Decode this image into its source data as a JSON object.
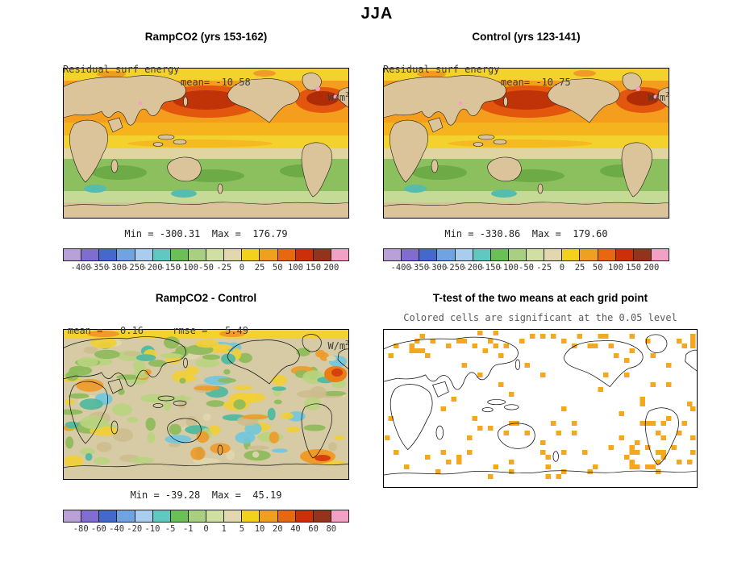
{
  "page_title": "JJA",
  "colorbar_colors": [
    "#b9a0d8",
    "#7f6ed0",
    "#4468cc",
    "#6fa3e2",
    "#a9cdee",
    "#5fc8c0",
    "#6abf57",
    "#a8d080",
    "#d0dfa2",
    "#e2d7ae",
    "#f3d21e",
    "#f0a020",
    "#e86810",
    "#cc3008",
    "#93331c",
    "#f2a0c4"
  ],
  "map_palettes": {
    "diff_blobs": [
      "#8cba5a",
      "#b8d47e",
      "#4cb8a0",
      "#6fc6de",
      "#f2cf35",
      "#f09a28",
      "#cdbd8e",
      "#e0d7ae",
      "#8cba5a",
      "#f2cf35",
      "#cdbd8e",
      "#b8d47e"
    ],
    "ttest_cell": "#f5a71d"
  },
  "panels": {
    "ramp": {
      "title": "RampCO2 (yrs 153-162)",
      "var_label": "Residual surf energy",
      "mean_label": "mean= -10.58",
      "units": "W/m",
      "units_exp": "2",
      "minmax": "Min = -300.31  Max =  176.79",
      "colorbar_labels": [
        "-400",
        "-350",
        "-300",
        "-250",
        "-200",
        "-150",
        "-100",
        "-50",
        "-25",
        "0",
        "25",
        "50",
        "100",
        "150",
        "200"
      ]
    },
    "control": {
      "title": "Control (yrs 123-141)",
      "var_label": "Residual surf energy",
      "mean_label": "mean= -10.75",
      "units": "W/m",
      "units_exp": "2",
      "minmax": "Min = -330.86  Max =  179.60",
      "colorbar_labels": [
        "-400",
        "-350",
        "-300",
        "-250",
        "-200",
        "-150",
        "-100",
        "-50",
        "-25",
        "0",
        "25",
        "50",
        "100",
        "150",
        "200"
      ]
    },
    "diff": {
      "title": "RampCO2 - Control",
      "stats_label": "mean =   0.16     rmse =   5.49",
      "units": "W/m",
      "units_exp": "2",
      "minmax": "Min = -39.28  Max =  45.19",
      "colorbar_labels": [
        "-80",
        "-60",
        "-40",
        "-20",
        "-10",
        "-5",
        "-1",
        "0",
        "1",
        "5",
        "10",
        "20",
        "40",
        "60",
        "80"
      ]
    },
    "ttest": {
      "title": "T-test of the two means at each grid point",
      "subtitle": "Colored cells are significant at the 0.05 level"
    }
  },
  "chart_data": [
    {
      "type": "heatmap",
      "title": "RampCO2 (yrs 153-162)",
      "season": "JJA",
      "variable": "Residual surf energy",
      "units": "W/m2",
      "mean": -10.58,
      "min": -300.31,
      "max": 176.79,
      "contour_levels": [
        -400,
        -350,
        -300,
        -250,
        -200,
        -150,
        -100,
        -50,
        -25,
        0,
        25,
        50,
        100,
        150,
        200
      ]
    },
    {
      "type": "heatmap",
      "title": "Control (yrs 123-141)",
      "season": "JJA",
      "variable": "Residual surf energy",
      "units": "W/m2",
      "mean": -10.75,
      "min": -330.86,
      "max": 179.6,
      "contour_levels": [
        -400,
        -350,
        -300,
        -250,
        -200,
        -150,
        -100,
        -50,
        -25,
        0,
        25,
        50,
        100,
        150,
        200
      ]
    },
    {
      "type": "heatmap",
      "title": "RampCO2 - Control",
      "season": "JJA",
      "variable": "Residual surf energy difference",
      "units": "W/m2",
      "mean": 0.16,
      "rmse": 5.49,
      "min": -39.28,
      "max": 45.19,
      "contour_levels": [
        -80,
        -60,
        -40,
        -20,
        -10,
        -5,
        -1,
        0,
        1,
        5,
        10,
        20,
        40,
        60,
        80
      ]
    },
    {
      "type": "heatmap",
      "title": "T-test of the two means at each grid point",
      "season": "JJA",
      "note": "Colored cells are significant at the 0.05 level",
      "significance_level": 0.05
    }
  ]
}
